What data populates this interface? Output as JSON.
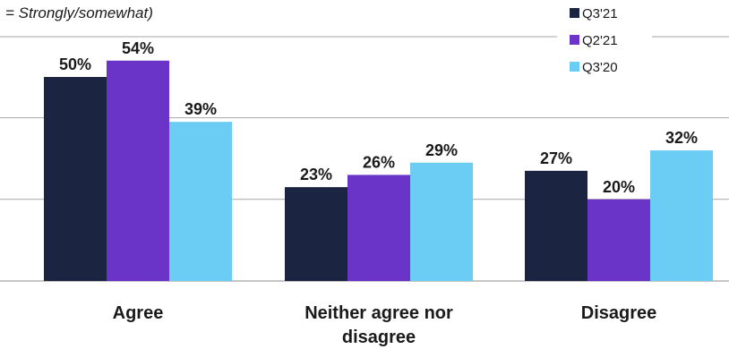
{
  "chart_data": {
    "type": "bar",
    "subtitle": "= Strongly/somewhat)",
    "categories": [
      [
        "Agree"
      ],
      [
        "Neither agree nor",
        "disagree"
      ],
      [
        "Disagree"
      ]
    ],
    "series": [
      {
        "name": "Q3'21",
        "values": [
          50,
          23,
          27
        ],
        "labels": [
          "50%",
          "23%",
          "27%"
        ],
        "color": "#1b2440"
      },
      {
        "name": "Q2'21",
        "values": [
          54,
          26,
          20
        ],
        "labels": [
          "54%",
          "26%",
          "20%"
        ],
        "color": "#6a34c9"
      },
      {
        "name": "Q3'20",
        "values": [
          39,
          29,
          32
        ],
        "labels": [
          "39%",
          "29%",
          "32%"
        ],
        "color": "#6ccdf4"
      }
    ],
    "ylim": [
      0,
      60
    ],
    "grid": true,
    "legend_position": "top-right"
  }
}
